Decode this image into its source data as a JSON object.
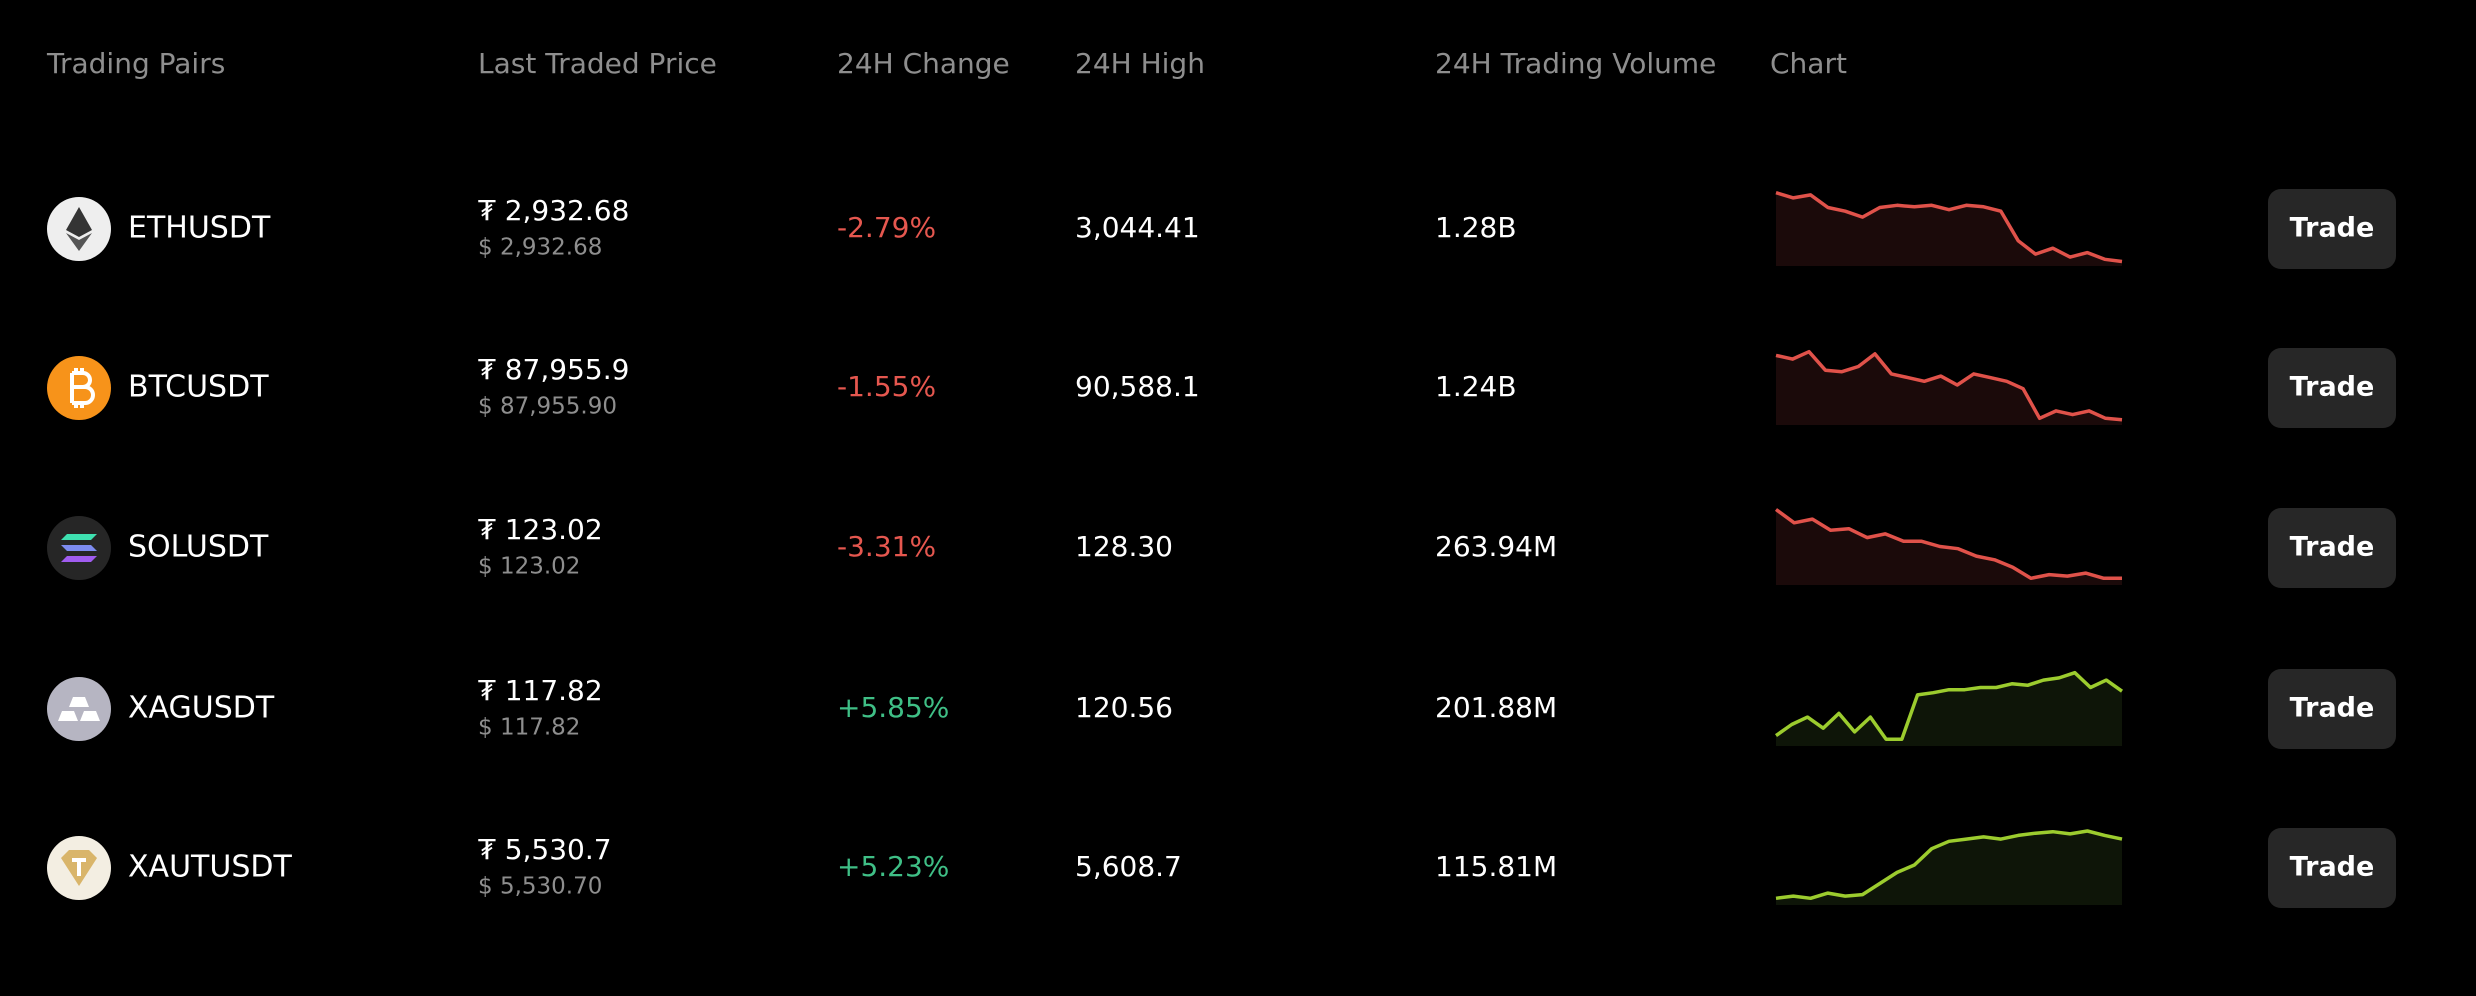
{
  "header": {
    "columns": [
      "Trading Pairs",
      "Last Traded Price",
      "24H Change",
      "24H High",
      "24H Trading Volume",
      "Chart"
    ]
  },
  "rows": [
    {
      "pair": "ETHUSDT",
      "price": "₮ 2,932.68",
      "price_usd": "$ 2,932.68",
      "change": "-2.79%",
      "high": "3,044.41",
      "volume": "1.28B",
      "action": "Trade",
      "change_color": "#e5574f",
      "chart_color": "#e0524a",
      "chart_fill": "#1b0a0a",
      "sparkline": [
        95,
        88,
        92,
        75,
        70,
        62,
        75,
        78,
        76,
        78,
        72,
        78,
        76,
        70,
        30,
        12,
        20,
        8,
        14,
        5,
        2
      ]
    },
    {
      "pair": "BTCUSDT",
      "price": "₮ 87,955.9",
      "price_usd": "$ 87,955.90",
      "change": "-1.55%",
      "high": "90,588.1",
      "volume": "1.24B",
      "action": "Trade",
      "change_color": "#e5574f",
      "chart_color": "#e0524a",
      "chart_fill": "#1b0a0a",
      "sparkline": [
        90,
        85,
        95,
        70,
        68,
        75,
        92,
        65,
        60,
        55,
        62,
        50,
        65,
        60,
        55,
        45,
        5,
        15,
        10,
        15,
        5,
        3
      ]
    },
    {
      "pair": "SOLUSDT",
      "price": "₮ 123.02",
      "price_usd": "$ 123.02",
      "change": "-3.31%",
      "high": "128.30",
      "volume": "263.94M",
      "action": "Trade",
      "change_color": "#e5574f",
      "chart_color": "#e0524a",
      "chart_fill": "#1b0a0a",
      "sparkline": [
        98,
        80,
        85,
        70,
        72,
        60,
        65,
        55,
        55,
        48,
        45,
        35,
        30,
        20,
        5,
        10,
        8,
        12,
        5,
        5
      ]
    },
    {
      "pair": "XAGUSDT",
      "price": "₮ 117.82",
      "price_usd": "$ 117.82",
      "change": "+5.85%",
      "high": "120.56",
      "volume": "201.88M",
      "action": "Trade",
      "change_color": "#3fbf86",
      "chart_color": "#9ccc2e",
      "chart_fill": "#0e1508",
      "sparkline": [
        10,
        25,
        35,
        20,
        40,
        15,
        35,
        5,
        5,
        65,
        68,
        72,
        72,
        75,
        75,
        80,
        78,
        85,
        88,
        95,
        75,
        85,
        70
      ]
    },
    {
      "pair": "XAUTUSDT",
      "price": "₮ 5,530.7",
      "price_usd": "$ 5,530.70",
      "change": "+5.23%",
      "high": "5,608.7",
      "volume": "115.81M",
      "action": "Trade",
      "change_color": "#3fbf86",
      "chart_color": "#9ccc2e",
      "chart_fill": "#0e1508",
      "sparkline": [
        5,
        8,
        5,
        12,
        8,
        10,
        25,
        40,
        50,
        72,
        82,
        85,
        88,
        85,
        90,
        93,
        95,
        92,
        96,
        90,
        85
      ]
    }
  ]
}
